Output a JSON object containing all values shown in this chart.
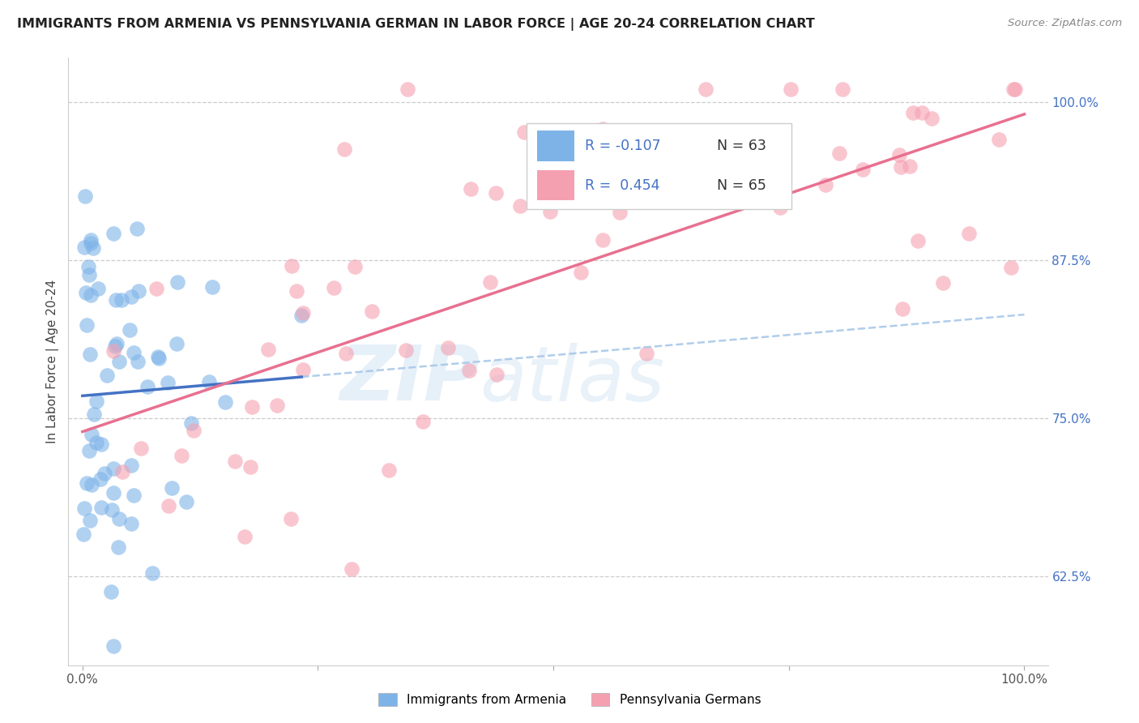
{
  "title": "IMMIGRANTS FROM ARMENIA VS PENNSYLVANIA GERMAN IN LABOR FORCE | AGE 20-24 CORRELATION CHART",
  "source": "Source: ZipAtlas.com",
  "ylabel": "In Labor Force | Age 20-24",
  "ytick_labels": [
    "62.5%",
    "75.0%",
    "87.5%",
    "100.0%"
  ],
  "ytick_values": [
    0.625,
    0.75,
    0.875,
    1.0
  ],
  "color_blue": "#7EB3E8",
  "color_pink": "#F5A0B0",
  "color_blue_line": "#4472C4",
  "color_pink_line": "#E87090",
  "color_dashed": "#A8C8E8",
  "color_rval": "#4472C4",
  "color_nval": "#333333",
  "watermark_zip": "ZIP",
  "watermark_atlas": "atlas",
  "legend_label1": "Immigrants from Armenia",
  "legend_label2": "Pennsylvania Germans",
  "blue_seed": 101,
  "pink_seed": 202
}
